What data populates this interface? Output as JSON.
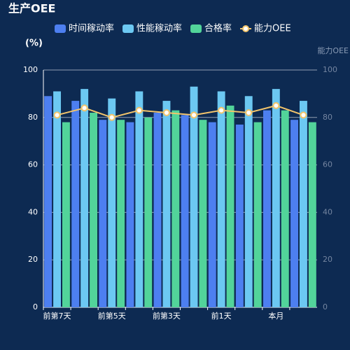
{
  "chart_data": {
    "type": "bar",
    "title": "生产OEE",
    "y_label": "(%)",
    "y2_label": "能力OEE",
    "categories": [
      "前第7天",
      null,
      "前第5天",
      null,
      "前第3天",
      null,
      "前1天",
      null,
      "本月",
      null
    ],
    "series": [
      {
        "name": "时间稼动率",
        "type": "bar",
        "color": "#4d7ff0",
        "values": [
          89,
          87,
          79,
          78,
          82,
          81,
          78,
          77,
          83,
          79
        ]
      },
      {
        "name": "性能稼动率",
        "type": "bar",
        "color": "#6cc8f2",
        "values": [
          91,
          92,
          88,
          91,
          87,
          93,
          91,
          89,
          92,
          87
        ]
      },
      {
        "name": "合格率",
        "type": "bar",
        "color": "#52d49a",
        "values": [
          78,
          82,
          79,
          80,
          83,
          79,
          85,
          78,
          83,
          78
        ]
      },
      {
        "name": "能力OEE",
        "type": "line",
        "axis": "y2",
        "color": "#f2c46b",
        "values": [
          81,
          84,
          80,
          83,
          82,
          81,
          83,
          82,
          85,
          81
        ]
      }
    ],
    "ylim": [
      0,
      100
    ],
    "yticks": [
      0,
      20,
      40,
      60,
      80,
      100
    ],
    "y2lim": [
      0,
      100
    ],
    "y2ticks": [
      0,
      20,
      40,
      60,
      80,
      100
    ],
    "grid": true
  }
}
